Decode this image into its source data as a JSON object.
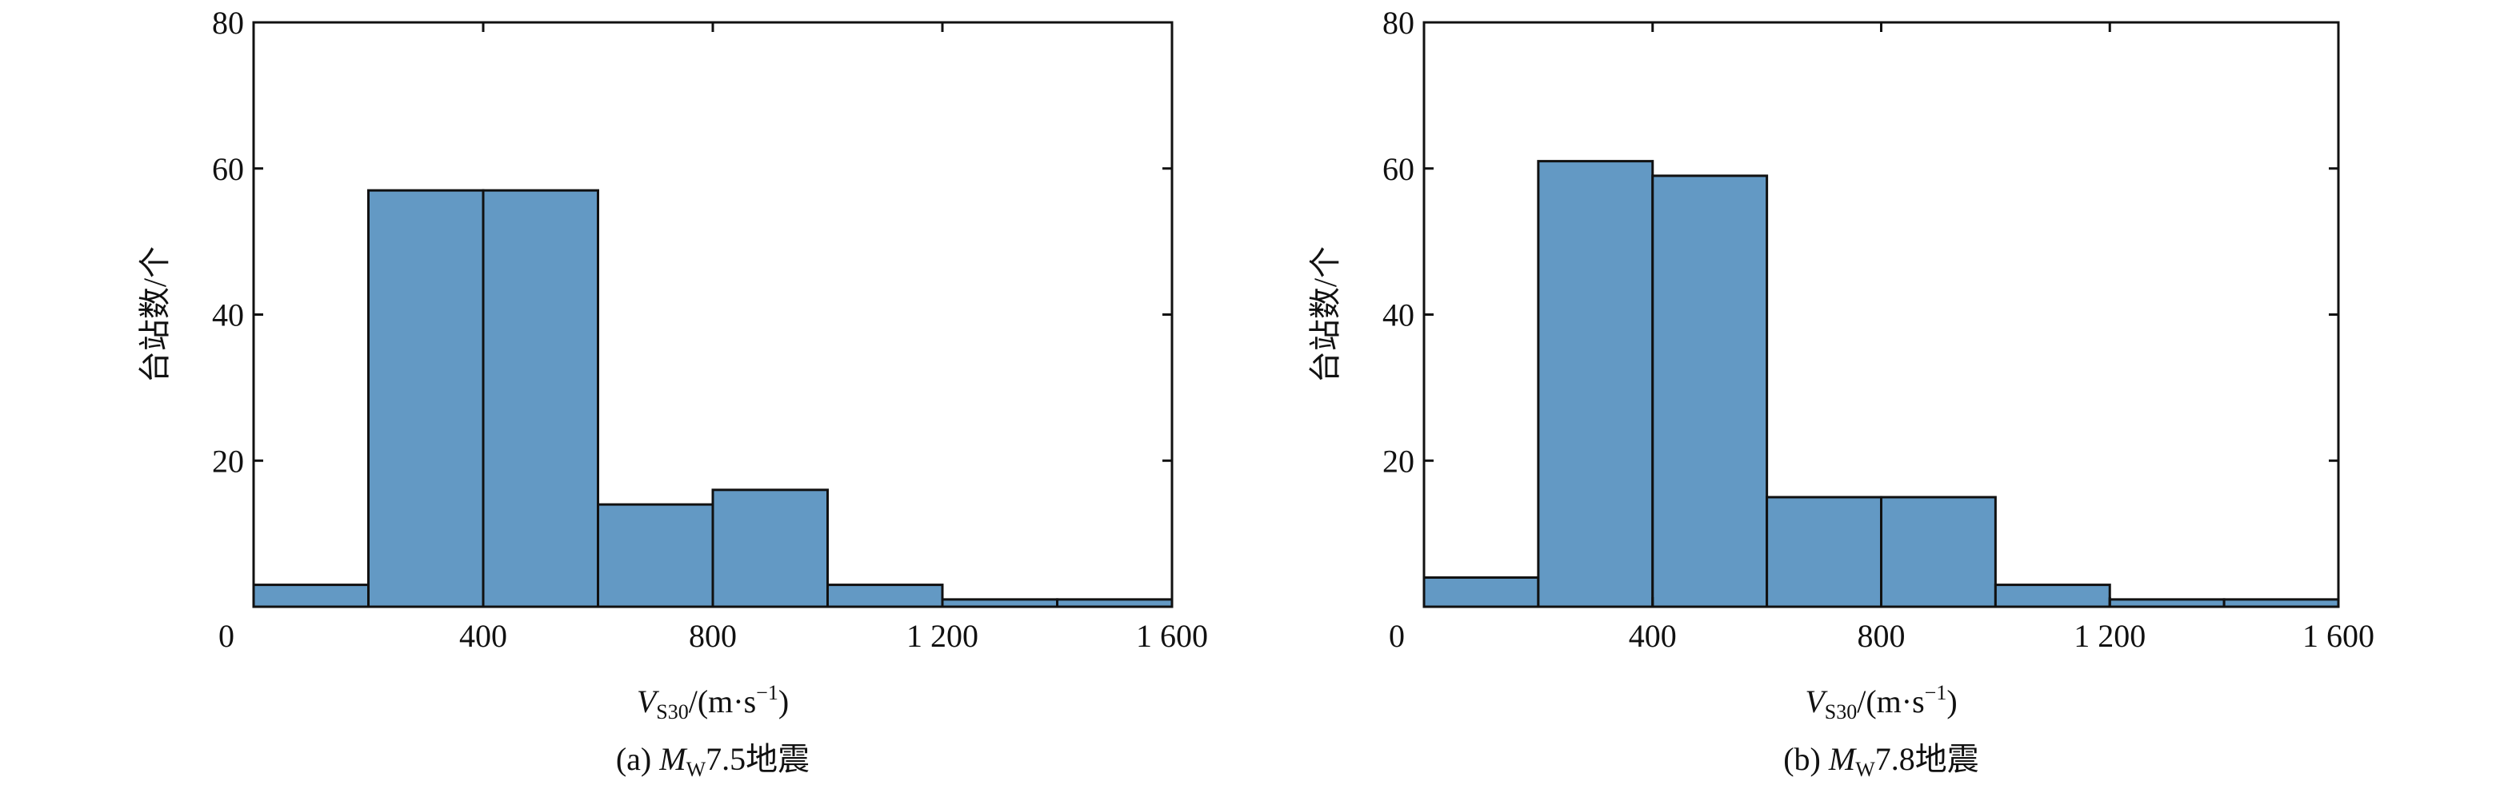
{
  "chart_data": [
    {
      "type": "histogram",
      "bins": [
        0,
        200,
        400,
        600,
        800,
        1000,
        1200,
        1400,
        1600
      ],
      "values": [
        3,
        57,
        57,
        14,
        16,
        3,
        1,
        1
      ],
      "color": "#6399c4",
      "xlim": [
        0,
        1600
      ],
      "xticks": [
        0,
        400,
        800,
        {
          "value": 1200,
          "label": "1 200"
        },
        {
          "value": 1600,
          "label": "1 600"
        }
      ],
      "ylim": [
        0,
        80
      ],
      "yticks": [
        20,
        40,
        60,
        80
      ],
      "ylabel": "台站数/个",
      "xlabel": {
        "symbol": "V",
        "sub": "S30",
        "unit": "/(m·s",
        "sup": "−1",
        "close": ")"
      },
      "caption": {
        "prefix": "(a) ",
        "symbol": "M",
        "sub": "W",
        "rest": "7.5地震"
      }
    },
    {
      "type": "histogram",
      "bins": [
        0,
        200,
        400,
        600,
        800,
        1000,
        1200,
        1400,
        1600
      ],
      "values": [
        4,
        61,
        59,
        15,
        15,
        3,
        1,
        1
      ],
      "color": "#6399c4",
      "xlim": [
        0,
        1600
      ],
      "xticks": [
        0,
        400,
        800,
        {
          "value": 1200,
          "label": "1 200"
        },
        {
          "value": 1600,
          "label": "1 600"
        }
      ],
      "ylim": [
        0,
        80
      ],
      "yticks": [
        20,
        40,
        60,
        80
      ],
      "ylabel": "台站数/个",
      "xlabel": {
        "symbol": "V",
        "sub": "S30",
        "unit": "/(m·s",
        "sup": "−1",
        "close": ")"
      },
      "caption": {
        "prefix": "(b) ",
        "symbol": "M",
        "sub": "W",
        "rest": "7.8地震"
      }
    }
  ]
}
